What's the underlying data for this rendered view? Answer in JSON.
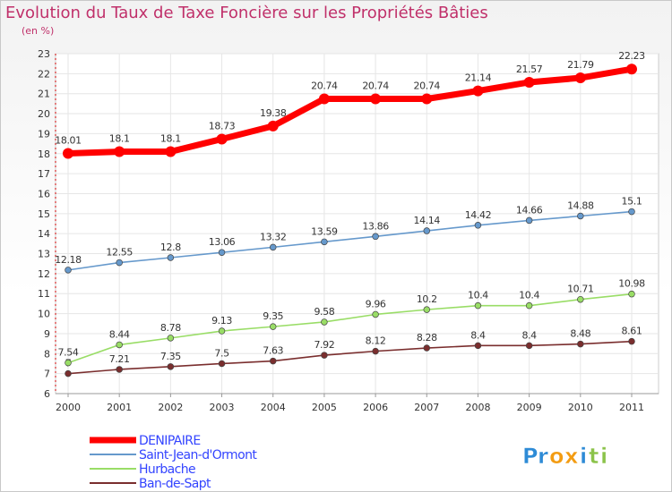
{
  "chart_data": {
    "type": "line",
    "title": "Evolution du Taux de Taxe Foncière sur les Propriétés Bâties",
    "subtitle": "(en %)",
    "x": [
      "2000",
      "2001",
      "2002",
      "2003",
      "2004",
      "2005",
      "2006",
      "2007",
      "2008",
      "2009",
      "2010",
      "2011"
    ],
    "ylim": [
      6,
      23
    ],
    "yticks": [
      "6",
      "7",
      "8",
      "9",
      "10",
      "11",
      "12",
      "13",
      "14",
      "15",
      "16",
      "17",
      "18",
      "19",
      "20",
      "21",
      "22",
      "23"
    ],
    "grid": true,
    "legend_position": "bottom-left",
    "series": [
      {
        "name": "DENIPAIRE",
        "color": "#ff0000",
        "values": [
          18.01,
          18.1,
          18.1,
          18.73,
          19.38,
          20.74,
          20.74,
          20.74,
          21.14,
          21.57,
          21.79,
          22.23
        ],
        "labels": [
          "18.01",
          "18.1",
          "18.1",
          "18.73",
          "19.38",
          "20.74",
          "20.74",
          "20.74",
          "21.14",
          "21.57",
          "21.79",
          "22.23"
        ]
      },
      {
        "name": "Saint-Jean-d'Ormont",
        "color": "#6699cc",
        "values": [
          12.18,
          12.55,
          12.8,
          13.06,
          13.32,
          13.59,
          13.86,
          14.14,
          14.42,
          14.66,
          14.88,
          15.1
        ],
        "labels": [
          "12.18",
          "12.55",
          "12.8",
          "13.06",
          "13.32",
          "13.59",
          "13.86",
          "14.14",
          "14.42",
          "14.66",
          "14.88",
          "15.1"
        ]
      },
      {
        "name": "Hurbache",
        "color": "#99dd66",
        "values": [
          7.54,
          8.44,
          8.78,
          9.13,
          9.35,
          9.58,
          9.96,
          10.2,
          10.4,
          10.4,
          10.71,
          10.98
        ],
        "labels": [
          "7.54",
          "8.44",
          "8.78",
          "9.13",
          "9.35",
          "9.58",
          "9.96",
          "10.2",
          "10.4",
          "10.4",
          "10.71",
          "10.98"
        ]
      },
      {
        "name": "Ban-de-Sapt",
        "color": "#7a2e2e",
        "values": [
          7,
          7.21,
          7.35,
          7.5,
          7.63,
          7.92,
          8.12,
          8.28,
          8.4,
          8.4,
          8.48,
          8.61
        ],
        "labels": [
          "7",
          "7.21",
          "7.35",
          "7.5",
          "7.63",
          "7.92",
          "8.12",
          "8.28",
          "8.4",
          "8.4",
          "8.48",
          "8.61"
        ]
      }
    ]
  },
  "logo": {
    "text": "Proxiti",
    "letters": [
      "P",
      "r",
      "o",
      "x",
      "i",
      "t",
      "i"
    ],
    "colors": [
      "#2e8bd6",
      "#2e8bd6",
      "#f39c12",
      "#f39c12",
      "#2e8bd6",
      "#8bc34a",
      "#8bc34a"
    ]
  }
}
